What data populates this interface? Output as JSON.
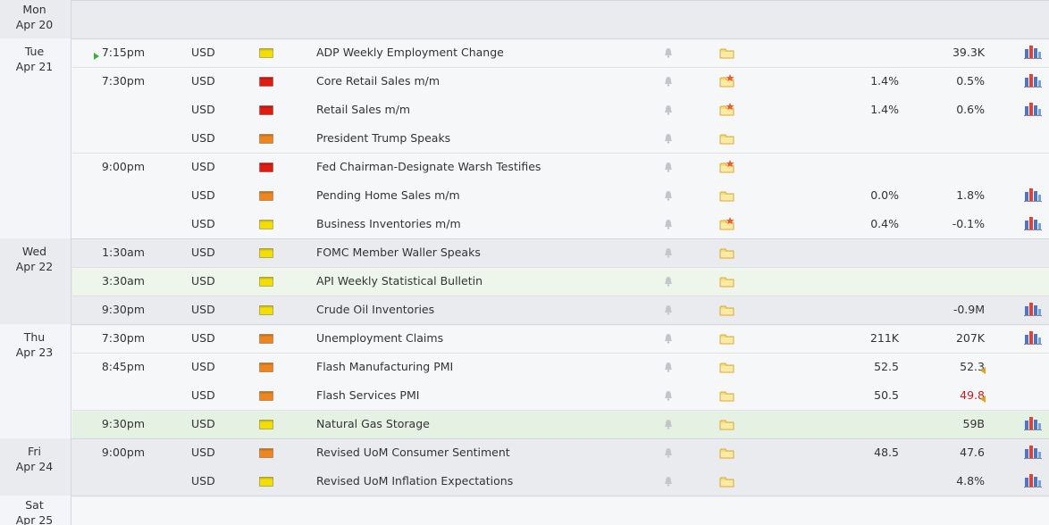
{
  "days": [
    {
      "weekday": "Mon",
      "date": "Apr 20",
      "events": []
    },
    {
      "weekday": "Tue",
      "date": "Apr 21",
      "events": [
        {
          "time": "7:15pm",
          "currency": "USD",
          "impact": "#f2de00",
          "event": "ADP Weekly Employment Change",
          "previous": "39.3K",
          "upcoming": true
        },
        {
          "time": "7:30pm",
          "currency": "USD",
          "impact": "#e01b10",
          "event": "Core Retail Sales m/m",
          "forecast": "1.4%",
          "previous": "0.5%",
          "new_detail": true
        },
        {
          "currency": "USD",
          "impact": "#e01b10",
          "event": "Retail Sales m/m",
          "forecast": "1.4%",
          "previous": "0.6%",
          "new_detail": true
        },
        {
          "currency": "USD",
          "impact": "#f0851e",
          "event": "President Trump Speaks"
        },
        {
          "time": "9:00pm",
          "currency": "USD",
          "impact": "#e01b10",
          "event": "Fed Chairman-Designate Warsh Testifies",
          "new_detail": true
        },
        {
          "currency": "USD",
          "impact": "#f0851e",
          "event": "Pending Home Sales m/m",
          "forecast": "0.0%",
          "previous": "1.8%"
        },
        {
          "currency": "USD",
          "impact": "#f2de00",
          "event": "Business Inventories m/m",
          "forecast": "0.4%",
          "previous": "-0.1%",
          "new_detail": true
        }
      ]
    },
    {
      "weekday": "Wed",
      "date": "Apr 22",
      "events": [
        {
          "time": "1:30am",
          "currency": "USD",
          "impact": "#f2de00",
          "event": "FOMC Member Waller Speaks"
        },
        {
          "time": "3:30am",
          "currency": "USD",
          "impact": "#f2de00",
          "event": "API Weekly Statistical Bulletin",
          "highlight": "#eef6ec"
        },
        {
          "time": "9:30pm",
          "currency": "USD",
          "impact": "#f2de00",
          "event": "Crude Oil Inventories",
          "previous": "-0.9M"
        }
      ]
    },
    {
      "weekday": "Thu",
      "date": "Apr 23",
      "events": [
        {
          "time": "7:30pm",
          "currency": "USD",
          "impact": "#f0851e",
          "event": "Unemployment Claims",
          "forecast": "211K",
          "previous": "207K"
        },
        {
          "time": "8:45pm",
          "currency": "USD",
          "impact": "#f0851e",
          "event": "Flash Manufacturing PMI",
          "forecast": "52.5",
          "previous": "52.3",
          "revised": true
        },
        {
          "currency": "USD",
          "impact": "#f0851e",
          "event": "Flash Services PMI",
          "forecast": "50.5",
          "previous": "49.8",
          "revised": true,
          "previous_color": "#c8191e"
        },
        {
          "time": "9:30pm",
          "currency": "USD",
          "impact": "#f2de00",
          "event": "Natural Gas Storage",
          "previous": "59B",
          "highlight": "#e5f1e2"
        }
      ]
    },
    {
      "weekday": "Fri",
      "date": "Apr 24",
      "events": [
        {
          "time": "9:00pm",
          "currency": "USD",
          "impact": "#f0851e",
          "event": "Revised UoM Consumer Sentiment",
          "forecast": "48.5",
          "previous": "47.6"
        },
        {
          "currency": "USD",
          "impact": "#f2de00",
          "event": "Revised UoM Inflation Expectations",
          "previous": "4.8%"
        }
      ]
    },
    {
      "weekday": "Sat",
      "date": "Apr 25",
      "events": []
    }
  ]
}
